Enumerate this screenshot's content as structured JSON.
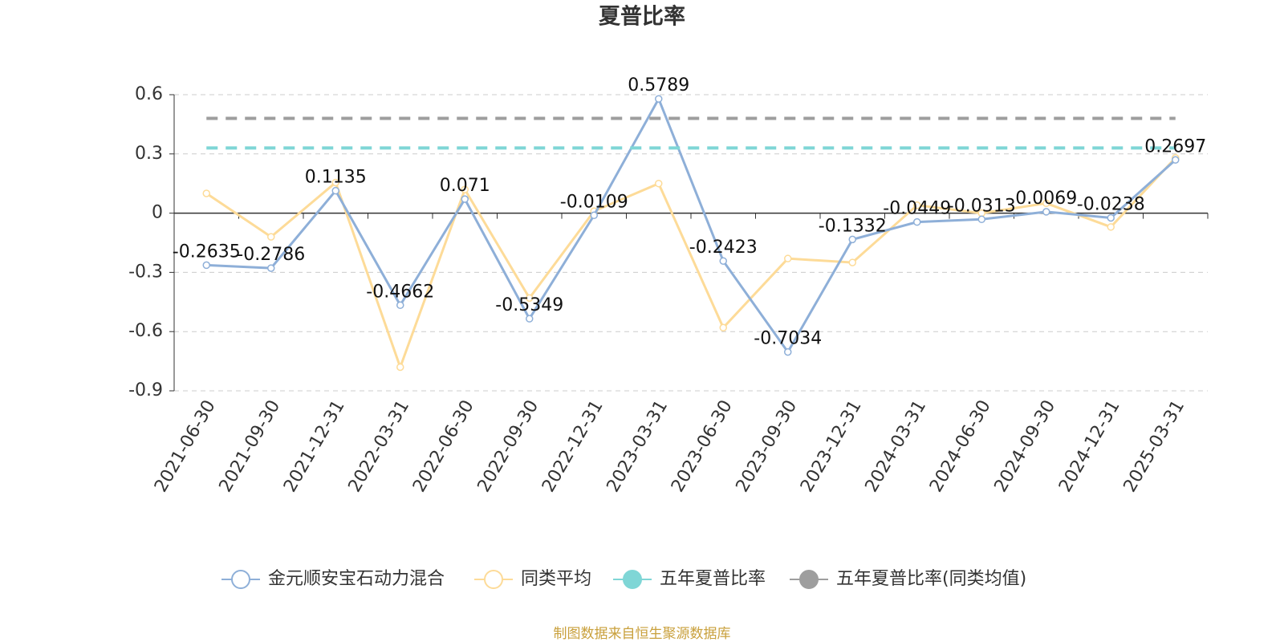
{
  "chart_data": {
    "type": "line",
    "title": "夏普比率",
    "source": "制图数据来自恒生聚源数据库",
    "categories": [
      "2021-06-30",
      "2021-09-30",
      "2021-12-31",
      "2022-03-31",
      "2022-06-30",
      "2022-09-30",
      "2022-12-31",
      "2023-03-31",
      "2023-06-30",
      "2023-09-30",
      "2023-12-31",
      "2024-03-31",
      "2024-06-30",
      "2024-09-30",
      "2024-12-31",
      "2025-03-31"
    ],
    "ylim": [
      -0.9,
      0.6
    ],
    "yticks": [
      -0.9,
      -0.6,
      -0.3,
      0,
      0.3,
      0.6
    ],
    "grid": true,
    "series": [
      {
        "name": "金元顺安宝石动力混合",
        "color": "#8eafd8",
        "marker": "hollow",
        "labels": true,
        "values": [
          -0.2635,
          -0.2786,
          0.1135,
          -0.4662,
          0.071,
          -0.5349,
          -0.0109,
          0.5789,
          -0.2423,
          -0.7034,
          -0.1332,
          -0.0449,
          -0.0313,
          0.0069,
          -0.0238,
          0.2697
        ]
      },
      {
        "name": "同类平均",
        "color": "#fddb98",
        "marker": "hollow",
        "values": [
          0.1,
          -0.12,
          0.155,
          -0.78,
          0.12,
          -0.43,
          0.01,
          0.15,
          -0.58,
          -0.23,
          -0.25,
          0.04,
          0,
          0.05,
          -0.07,
          0.28
        ]
      },
      {
        "name": "五年夏普比率",
        "color": "#7fd6d6",
        "marker": "filled",
        "dashed": true,
        "values": [
          0.33,
          0.33,
          0.33,
          0.33,
          0.33,
          0.33,
          0.33,
          0.33,
          0.33,
          0.33,
          0.33,
          0.33,
          0.33,
          0.33,
          0.33,
          0.33
        ]
      },
      {
        "name": "五年夏普比率(同类均值)",
        "color": "#9e9e9e",
        "marker": "filled",
        "dashed": true,
        "values": [
          0.48,
          0.48,
          0.48,
          0.48,
          0.48,
          0.48,
          0.48,
          0.48,
          0.48,
          0.48,
          0.48,
          0.48,
          0.48,
          0.48,
          0.48,
          0.48
        ]
      }
    ]
  }
}
